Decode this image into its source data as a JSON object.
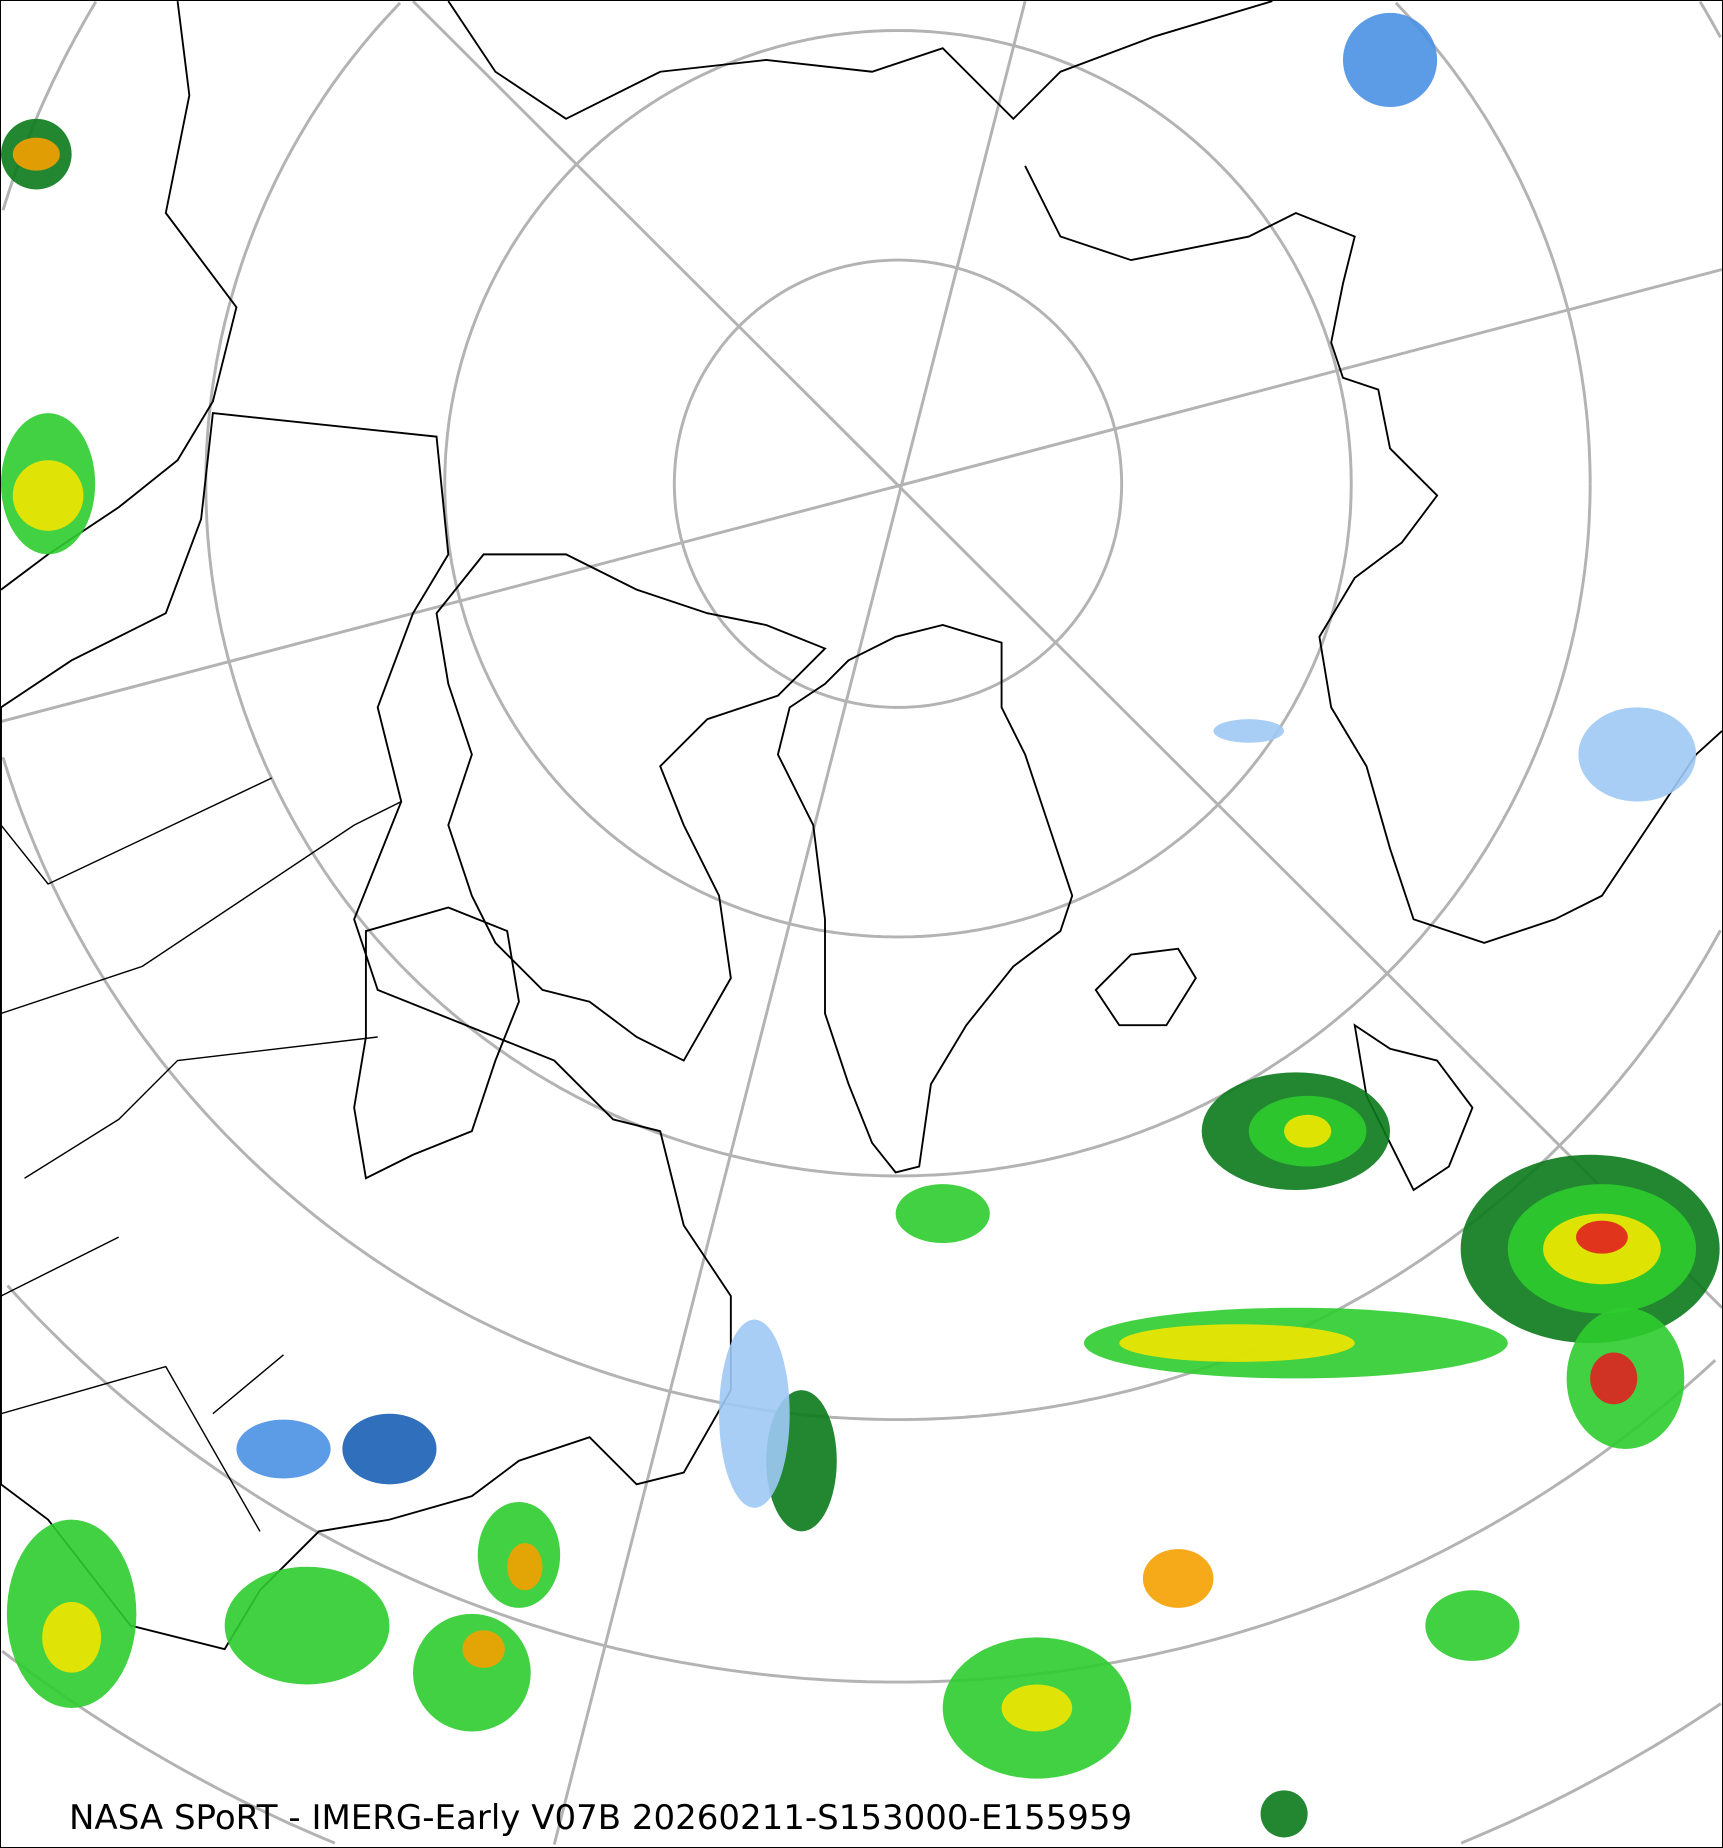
{
  "caption": "NASA SPoRT - IMERG-Early V07B 20260211-S153000-E155959",
  "map": {
    "projection": "polar stereographic (north pole)",
    "graticule_color": "#b3b3b3",
    "coastline_color": "#000000",
    "precip_colors": {
      "light_blue": "#9ec9f5",
      "blue": "#4a90e2",
      "dark_blue": "#1a5fb4",
      "dark_green": "#0a7a1a",
      "green": "#2ecc2e",
      "light_green": "#7cfc00",
      "yellow": "#f2e600",
      "orange": "#f5a000",
      "red": "#e02020",
      "pink": "#ff66cc"
    }
  }
}
